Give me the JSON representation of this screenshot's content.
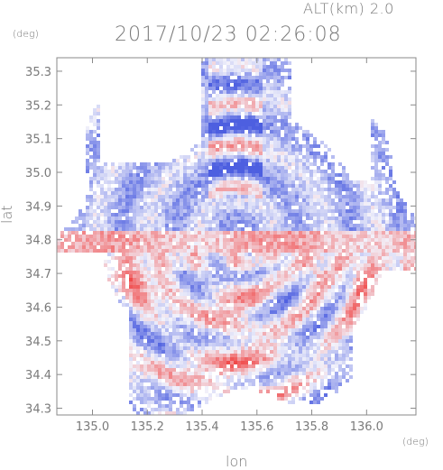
{
  "header": {
    "altitude": "ALT(km) 2.0",
    "timestamp": "2017/10/23 02:26:08"
  },
  "axes": {
    "x_unit": "(deg)",
    "y_unit": "(deg)",
    "x_label": "lon",
    "y_label": "lat"
  },
  "chart_data": {
    "type": "heatmap",
    "xlabel": "lon",
    "ylabel": "lat",
    "xlim": [
      134.87,
      136.18
    ],
    "ylim": [
      34.28,
      35.34
    ],
    "x_ticks": [
      "135.0",
      "135.2",
      "135.4",
      "135.6",
      "135.8",
      "136.0"
    ],
    "y_ticks": [
      "35.3",
      "35.2",
      "35.1",
      "35.0",
      "34.9",
      "34.8",
      "34.7",
      "34.6",
      "34.5",
      "34.4",
      "34.3"
    ],
    "grid": false,
    "colormap": {
      "negative": "#4d5fe0",
      "neutral": "#f2f2fb",
      "positive": "#f04a4a"
    },
    "radar_center": {
      "lon": 135.52,
      "lat": 34.82
    }
  }
}
